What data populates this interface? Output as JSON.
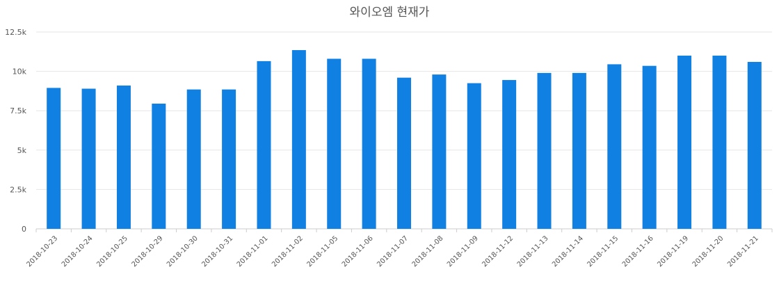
{
  "chart_data": {
    "type": "bar",
    "title": "와이오엠 현재가",
    "xlabel": "",
    "ylabel": "",
    "ylim": [
      0,
      12500
    ],
    "yticks": [
      0,
      2500,
      5000,
      7500,
      10000,
      12500
    ],
    "ytick_labels": [
      "0",
      "2.5k",
      "5k",
      "7.5k",
      "10k",
      "12.5k"
    ],
    "grid": true,
    "legend": "none",
    "color": "#1180e3",
    "categories": [
      "2018-10-23",
      "2018-10-24",
      "2018-10-25",
      "2018-10-29",
      "2018-10-30",
      "2018-10-31",
      "2018-11-01",
      "2018-11-02",
      "2018-11-05",
      "2018-11-06",
      "2018-11-07",
      "2018-11-08",
      "2018-11-09",
      "2018-11-12",
      "2018-11-13",
      "2018-11-14",
      "2018-11-15",
      "2018-11-16",
      "2018-11-19",
      "2018-11-20",
      "2018-11-21"
    ],
    "values": [
      8950,
      8900,
      9100,
      7950,
      8850,
      8850,
      10650,
      11350,
      10800,
      10800,
      9600,
      9800,
      9250,
      9450,
      9900,
      9900,
      10450,
      10350,
      11000,
      11000,
      10600
    ]
  }
}
